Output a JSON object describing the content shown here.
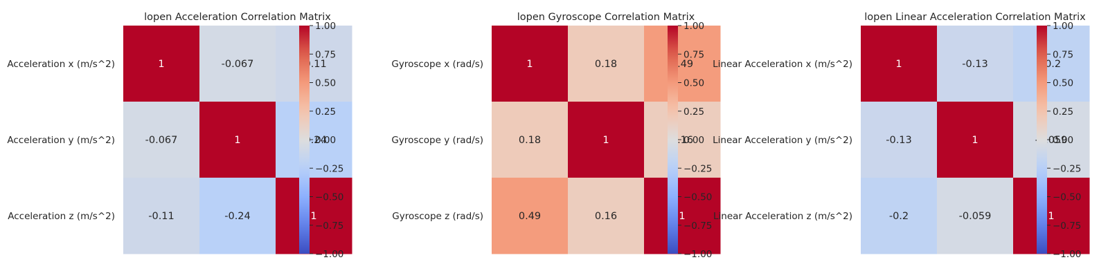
{
  "chart_data": [
    {
      "type": "heatmap",
      "title": "lopen Acceleration Correlation Matrix",
      "row_labels": [
        "Acceleration x (m/s^2)",
        "Acceleration y (m/s^2)",
        "Acceleration z (m/s^2)"
      ],
      "matrix": [
        [
          1,
          -0.067,
          -0.11
        ],
        [
          -0.067,
          1,
          -0.24
        ],
        [
          -0.11,
          -0.24,
          1
        ]
      ],
      "cell_labels": [
        [
          "1",
          "-0.067",
          "-0.11"
        ],
        [
          "-0.067",
          "1",
          "-0.24"
        ],
        [
          "-0.11",
          "-0.24",
          "1"
        ]
      ],
      "colormap": "coolwarm",
      "vmin": -1,
      "vmax": 1,
      "colorbar_ticks": [
        "1.00",
        "0.75",
        "0.50",
        "0.25",
        "0.00",
        "−0.25",
        "−0.50",
        "−0.75",
        "−1.00"
      ]
    },
    {
      "type": "heatmap",
      "title": "lopen Gyroscope Correlation Matrix",
      "row_labels": [
        "Gyroscope x (rad/s)",
        "Gyroscope y (rad/s)",
        "Gyroscope z (rad/s)"
      ],
      "matrix": [
        [
          1,
          0.18,
          0.49
        ],
        [
          0.18,
          1,
          0.16
        ],
        [
          0.49,
          0.16,
          1
        ]
      ],
      "cell_labels": [
        [
          "1",
          "0.18",
          "0.49"
        ],
        [
          "0.18",
          "1",
          "0.16"
        ],
        [
          "0.49",
          "0.16",
          "1"
        ]
      ],
      "colormap": "coolwarm",
      "vmin": -1,
      "vmax": 1,
      "colorbar_ticks": [
        "1.00",
        "0.75",
        "0.50",
        "0.25",
        "0.00",
        "−0.25",
        "−0.50",
        "−0.75",
        "−1.00"
      ]
    },
    {
      "type": "heatmap",
      "title": "lopen Linear Acceleration Correlation Matrix",
      "row_labels": [
        "Linear Acceleration x (m/s^2)",
        "Linear Acceleration y (m/s^2)",
        "Linear Acceleration z (m/s^2)"
      ],
      "matrix": [
        [
          1,
          -0.13,
          -0.2
        ],
        [
          -0.13,
          1,
          -0.059
        ],
        [
          -0.2,
          -0.059,
          1
        ]
      ],
      "cell_labels": [
        [
          "1",
          "-0.13",
          "-0.2"
        ],
        [
          "-0.13",
          "1",
          "-0.059"
        ],
        [
          "-0.2",
          "-0.059",
          "1"
        ]
      ],
      "colormap": "coolwarm",
      "vmin": -1,
      "vmax": 1,
      "colorbar_ticks": [
        "1.00",
        "0.75",
        "0.50",
        "0.25",
        "0.00",
        "−0.25",
        "−0.50",
        "−0.75",
        "−1.00"
      ]
    }
  ]
}
